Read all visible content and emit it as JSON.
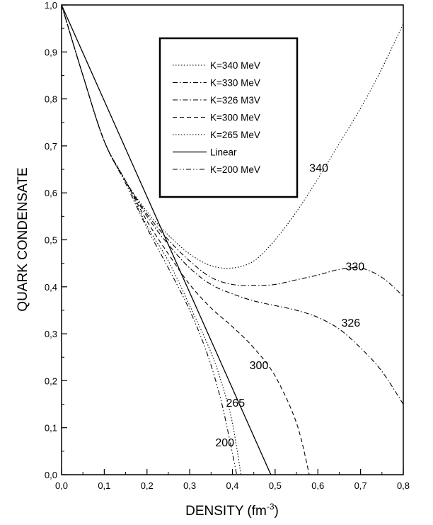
{
  "chart_data": {
    "type": "line",
    "xlabel": "DENSITY (fm",
    "xlabel_sup": "-3",
    "xlabel_end": ")",
    "ylabel": "QUARK CONDENSATE",
    "xlim": [
      0.0,
      0.8
    ],
    "ylim": [
      0.0,
      1.0
    ],
    "x_ticks": [
      0.0,
      0.1,
      0.2,
      0.3,
      0.4,
      0.5,
      0.6,
      0.7,
      0.8
    ],
    "x_tick_labels": [
      "0,0",
      "0,1",
      "0,2",
      "0,3",
      "0,4",
      "0,5",
      "0,6",
      "0,7",
      "0,8"
    ],
    "y_ticks": [
      0.0,
      0.1,
      0.2,
      0.3,
      0.4,
      0.5,
      0.6,
      0.7,
      0.8,
      0.9,
      1.0
    ],
    "y_tick_labels": [
      "0,0",
      "0,1",
      "0,2",
      "0,3",
      "0,4",
      "0,5",
      "0,6",
      "0,7",
      "0,8",
      "0,9",
      "1,0"
    ],
    "grid": false,
    "legend_position": "top-center",
    "series": [
      {
        "name": "K=340 MeV",
        "dash": "dot",
        "label": "340",
        "label_at": [
          0.58,
          0.645
        ],
        "x": [
          0.0,
          0.05,
          0.1,
          0.15,
          0.2,
          0.25,
          0.3,
          0.35,
          0.4,
          0.45,
          0.5,
          0.55,
          0.6,
          0.65,
          0.7,
          0.75,
          0.8
        ],
        "y": [
          1.0,
          0.85,
          0.71,
          0.625,
          0.56,
          0.51,
          0.47,
          0.445,
          0.44,
          0.455,
          0.5,
          0.56,
          0.63,
          0.705,
          0.78,
          0.865,
          0.96
        ]
      },
      {
        "name": "K=330 MeV",
        "dash": "dashdot",
        "label": "330",
        "label_at": [
          0.665,
          0.435
        ],
        "x": [
          0.0,
          0.05,
          0.1,
          0.15,
          0.2,
          0.25,
          0.3,
          0.35,
          0.4,
          0.45,
          0.5,
          0.55,
          0.6,
          0.65,
          0.7,
          0.75,
          0.8
        ],
        "y": [
          1.0,
          0.85,
          0.71,
          0.625,
          0.555,
          0.5,
          0.455,
          0.42,
          0.405,
          0.403,
          0.405,
          0.415,
          0.425,
          0.437,
          0.44,
          0.42,
          0.38
        ]
      },
      {
        "name": "K=326 M3V",
        "dash": "dashdot",
        "label": "326",
        "label_at": [
          0.655,
          0.315
        ],
        "x": [
          0.0,
          0.05,
          0.1,
          0.15,
          0.2,
          0.25,
          0.3,
          0.35,
          0.4,
          0.45,
          0.5,
          0.55,
          0.6,
          0.65,
          0.7,
          0.75,
          0.8
        ],
        "y": [
          1.0,
          0.85,
          0.71,
          0.625,
          0.55,
          0.49,
          0.44,
          0.405,
          0.385,
          0.37,
          0.36,
          0.35,
          0.335,
          0.31,
          0.27,
          0.22,
          0.15
        ]
      },
      {
        "name": "K=300 MeV",
        "dash": "dash",
        "label": "300",
        "label_at": [
          0.44,
          0.225
        ],
        "x": [
          0.0,
          0.05,
          0.1,
          0.15,
          0.2,
          0.25,
          0.3,
          0.35,
          0.4,
          0.45,
          0.5,
          0.55,
          0.58
        ],
        "y": [
          1.0,
          0.85,
          0.71,
          0.625,
          0.54,
          0.47,
          0.405,
          0.355,
          0.315,
          0.27,
          0.21,
          0.11,
          0.0
        ]
      },
      {
        "name": "K=265 MeV",
        "dash": "dot",
        "label": "265",
        "label_at": [
          0.385,
          0.145
        ],
        "x": [
          0.0,
          0.05,
          0.1,
          0.15,
          0.2,
          0.25,
          0.3,
          0.35,
          0.38,
          0.4,
          0.42
        ],
        "y": [
          1.0,
          0.85,
          0.71,
          0.625,
          0.53,
          0.455,
          0.36,
          0.26,
          0.18,
          0.11,
          0.0
        ]
      },
      {
        "name": "Linear",
        "dash": "solid",
        "label": "",
        "label_at": null,
        "x": [
          0.0,
          0.49
        ],
        "y": [
          1.0,
          0.0
        ]
      },
      {
        "name": "K=200 MeV",
        "dash": "dashdotdot",
        "label": "200",
        "label_at": [
          0.36,
          0.06
        ],
        "x": [
          0.0,
          0.05,
          0.1,
          0.15,
          0.2,
          0.25,
          0.3,
          0.34,
          0.37,
          0.39,
          0.41
        ],
        "y": [
          1.0,
          0.85,
          0.71,
          0.62,
          0.525,
          0.44,
          0.35,
          0.26,
          0.17,
          0.09,
          0.0
        ]
      }
    ]
  }
}
